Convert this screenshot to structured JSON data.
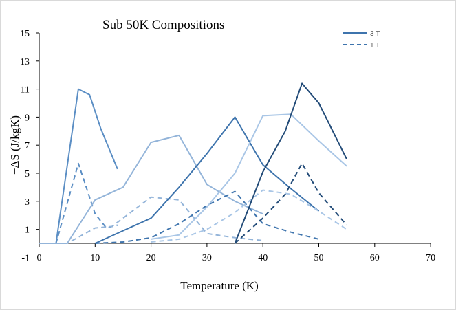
{
  "chart_data": {
    "type": "line",
    "title": "Sub 50K Compositions",
    "xlabel": "Temperature  (K)",
    "ylabel": "−ΔS (J/kgK)",
    "xlim": [
      0,
      70
    ],
    "ylim": [
      -1,
      15
    ],
    "xticks": [
      0,
      10,
      20,
      30,
      40,
      50,
      60,
      70
    ],
    "yticks": [
      -1,
      1,
      3,
      5,
      7,
      9,
      11,
      13,
      15
    ],
    "grid": false,
    "legend": {
      "position": "top-right",
      "entries": [
        {
          "label": "3 T",
          "style": "solid"
        },
        {
          "label": "1 T",
          "style": "dashed"
        }
      ]
    },
    "series": [
      {
        "field": "3 T",
        "color": "#5b8ec4",
        "dash": false,
        "points": [
          [
            0,
            0
          ],
          [
            3,
            0
          ],
          [
            7,
            11
          ],
          [
            9,
            10.6
          ],
          [
            11,
            8.2
          ],
          [
            14,
            5.3
          ]
        ]
      },
      {
        "field": "1 T",
        "color": "#5b8ec4",
        "dash": true,
        "points": [
          [
            0,
            0
          ],
          [
            3,
            0
          ],
          [
            7,
            5.7
          ],
          [
            10,
            2.1
          ],
          [
            12,
            1.1
          ],
          [
            14,
            1.3
          ]
        ]
      },
      {
        "field": "3 T",
        "color": "#93b4d9",
        "dash": false,
        "points": [
          [
            0,
            0
          ],
          [
            5,
            0
          ],
          [
            10,
            3.1
          ],
          [
            15,
            4
          ],
          [
            20,
            7.2
          ],
          [
            25,
            7.7
          ],
          [
            30,
            4.2
          ],
          [
            35,
            3
          ],
          [
            40,
            2.1
          ]
        ]
      },
      {
        "field": "1 T",
        "color": "#93b4d9",
        "dash": true,
        "points": [
          [
            0,
            0
          ],
          [
            5,
            0
          ],
          [
            10,
            1.1
          ],
          [
            13,
            1.2
          ],
          [
            20,
            3.3
          ],
          [
            25,
            3.1
          ],
          [
            30,
            0.7
          ],
          [
            35,
            0.4
          ],
          [
            40,
            0.2
          ]
        ]
      },
      {
        "field": "3 T",
        "color": "#3e74ad",
        "dash": false,
        "points": [
          [
            10,
            0
          ],
          [
            15,
            0.9
          ],
          [
            20,
            1.8
          ],
          [
            25,
            4
          ],
          [
            30,
            6.4
          ],
          [
            35,
            9
          ],
          [
            40,
            5.6
          ],
          [
            45,
            3.9
          ],
          [
            50,
            2.3
          ]
        ]
      },
      {
        "field": "1 T",
        "color": "#3e74ad",
        "dash": true,
        "points": [
          [
            10,
            0
          ],
          [
            15,
            0.1
          ],
          [
            20,
            0.4
          ],
          [
            25,
            1.4
          ],
          [
            30,
            2.7
          ],
          [
            35,
            3.7
          ],
          [
            40,
            1.4
          ],
          [
            45,
            0.8
          ],
          [
            50,
            0.3
          ]
        ]
      },
      {
        "field": "3 T",
        "color": "#a9c6e6",
        "dash": false,
        "points": [
          [
            20,
            0.3
          ],
          [
            25,
            0.6
          ],
          [
            30,
            2.6
          ],
          [
            35,
            5
          ],
          [
            40,
            9.1
          ],
          [
            45,
            9.2
          ],
          [
            50,
            7.3
          ],
          [
            55,
            5.5
          ]
        ]
      },
      {
        "field": "1 T",
        "color": "#a9c6e6",
        "dash": true,
        "points": [
          [
            20,
            0.1
          ],
          [
            25,
            0.3
          ],
          [
            30,
            1
          ],
          [
            35,
            2.2
          ],
          [
            40,
            3.8
          ],
          [
            45,
            3.5
          ],
          [
            50,
            2.3
          ],
          [
            55,
            1
          ]
        ]
      },
      {
        "field": "3 T",
        "color": "#224b78",
        "dash": false,
        "points": [
          [
            35,
            0
          ],
          [
            40,
            5.1
          ],
          [
            44,
            8
          ],
          [
            47,
            11.4
          ],
          [
            50,
            10
          ],
          [
            55,
            6
          ]
        ]
      },
      {
        "field": "1 T",
        "color": "#224b78",
        "dash": true,
        "points": [
          [
            35,
            0
          ],
          [
            40,
            1.8
          ],
          [
            44,
            3.5
          ],
          [
            47,
            5.7
          ],
          [
            50,
            3.6
          ],
          [
            55,
            1.3
          ]
        ]
      }
    ]
  }
}
